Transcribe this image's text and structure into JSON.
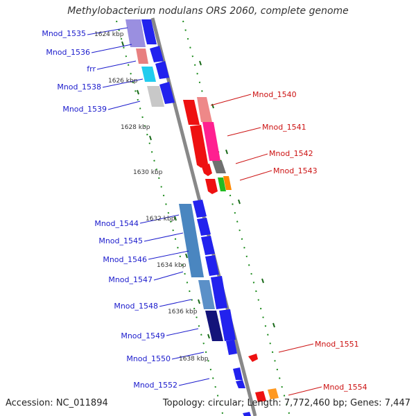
{
  "title": "Methylobacterium nodulans ORS 2060, complete genome",
  "footer": {
    "accession": "Accession: NC_011894",
    "summary": "Topology: circular; Length: 7,772,460 bp; Genes: 7,447"
  },
  "colors": {
    "backbone": "#888888",
    "ticks": "#1a8a1a",
    "forward_label": "#1a1acc",
    "reverse_label": "#cc1111"
  },
  "kbp_ticks": [
    "1624 kbp",
    "1626 kbp",
    "1628 kbp",
    "1630 kbp",
    "1632 kbp",
    "1634 kbp",
    "1636 kbp",
    "1638 kbp"
  ],
  "genes_forward": [
    {
      "label": "Mnod_1535",
      "color": "#9a8fe0"
    },
    {
      "label": "Mnod_1536",
      "color": "#e88080"
    },
    {
      "label": "frr",
      "color": "#22ccee"
    },
    {
      "label": "Mnod_1538",
      "color": "#2222ee"
    },
    {
      "label": "Mnod_1539",
      "color": "#c8c8c8"
    },
    {
      "label": "Mnod_1544",
      "color": "#4a86c0"
    },
    {
      "label": "Mnod_1545",
      "color": "#4a86c0"
    },
    {
      "label": "Mnod_1546",
      "color": "#4a86c0"
    },
    {
      "label": "Mnod_1547",
      "color": "#2222ee"
    },
    {
      "label": "Mnod_1548",
      "color": "#5b90c8"
    },
    {
      "label": "Mnod_1549",
      "color": "#14147a"
    },
    {
      "label": "Mnod_1550",
      "color": "#2222ee"
    },
    {
      "label": "Mnod_1552",
      "color": "#2222ee"
    }
  ],
  "genes_reverse": [
    {
      "label": "Mnod_1540",
      "color": "#ee8888"
    },
    {
      "label": "Mnod_1541",
      "color": "#ff2090"
    },
    {
      "label": "Mnod_1542",
      "color": "#707070"
    },
    {
      "label": "Mnod_1543",
      "color": "#ff8800"
    },
    {
      "label": "Mnod_1551",
      "color": "#ee1111"
    },
    {
      "label": "Mnod_1554",
      "color": "#ff9922"
    }
  ]
}
